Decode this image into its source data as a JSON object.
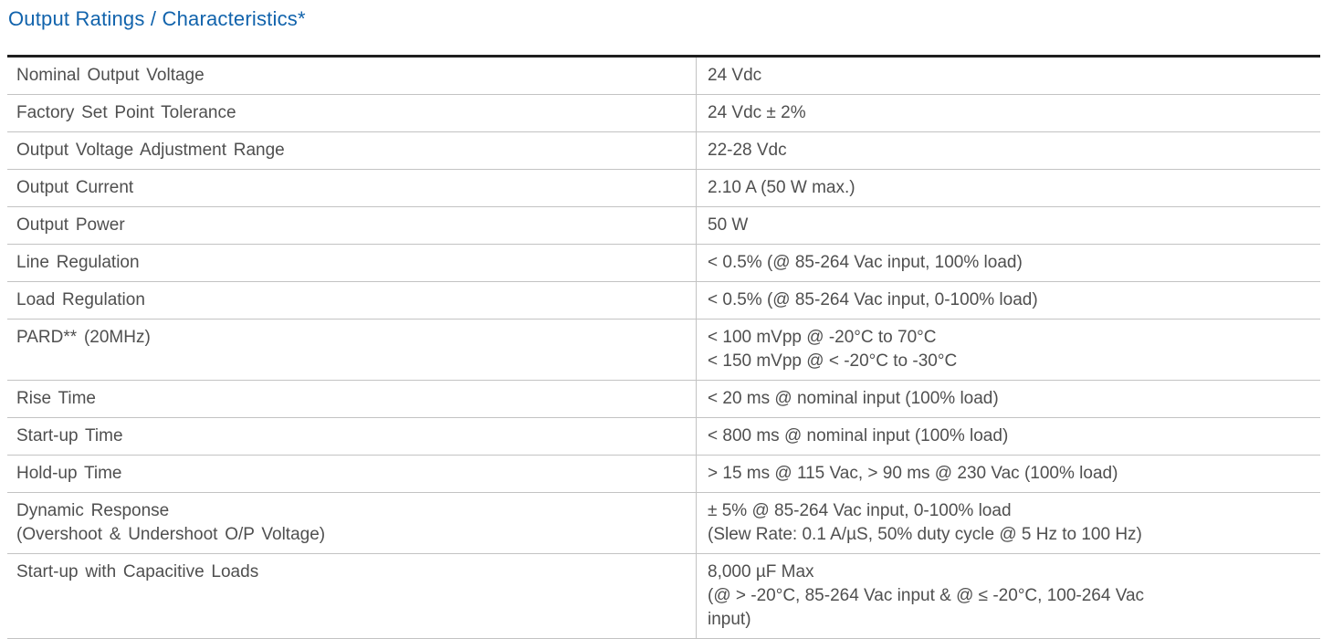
{
  "page": {
    "title": "Output Ratings / Characteristics*"
  },
  "colors": {
    "title_blue": "#1163AC",
    "body_text_gray": "#4F4F4F",
    "row_divider_gray": "#C3C3C3",
    "table_top_border": "#1F1F1F",
    "background": "#FFFFFF"
  },
  "table": {
    "columns": [
      "parameter",
      "value"
    ],
    "rows": [
      {
        "param": "Nominal Output Voltage",
        "value": "24 Vdc"
      },
      {
        "param": "Factory Set Point Tolerance",
        "value": "24 Vdc ± 2%"
      },
      {
        "param": "Output Voltage Adjustment Range",
        "value": "22-28 Vdc"
      },
      {
        "param": "Output Current",
        "value": "2.10 A (50 W max.)"
      },
      {
        "param": "Output Power",
        "value": "50 W"
      },
      {
        "param": "Line Regulation",
        "value": "< 0.5% (@ 85-264 Vac input, 100% load)"
      },
      {
        "param": "Load Regulation",
        "value": "< 0.5% (@ 85-264 Vac input, 0-100% load)"
      },
      {
        "param": "PARD** (20MHz)",
        "value": "< 100 mVpp @ -20°C to 70°C\n< 150 mVpp @ < -20°C to -30°C"
      },
      {
        "param": "Rise Time",
        "value": "< 20 ms @ nominal input (100% load)"
      },
      {
        "param": "Start-up Time",
        "value": "< 800 ms @ nominal input (100% load)"
      },
      {
        "param": "Hold-up Time",
        "value": "> 15 ms @ 115 Vac, > 90 ms @ 230 Vac (100% load)"
      },
      {
        "param": "Dynamic Response\n(Overshoot & Undershoot O/P Voltage)",
        "value": "± 5% @ 85-264 Vac input, 0-100% load\n(Slew Rate: 0.1 A/µS, 50% duty cycle @ 5 Hz to 100 Hz)"
      },
      {
        "param": "Start-up with Capacitive Loads",
        "value": "8,000 µF Max\n(@ > -20°C, 85-264 Vac input & @ ≤ -20°C, 100-264 Vac\ninput)"
      }
    ]
  }
}
